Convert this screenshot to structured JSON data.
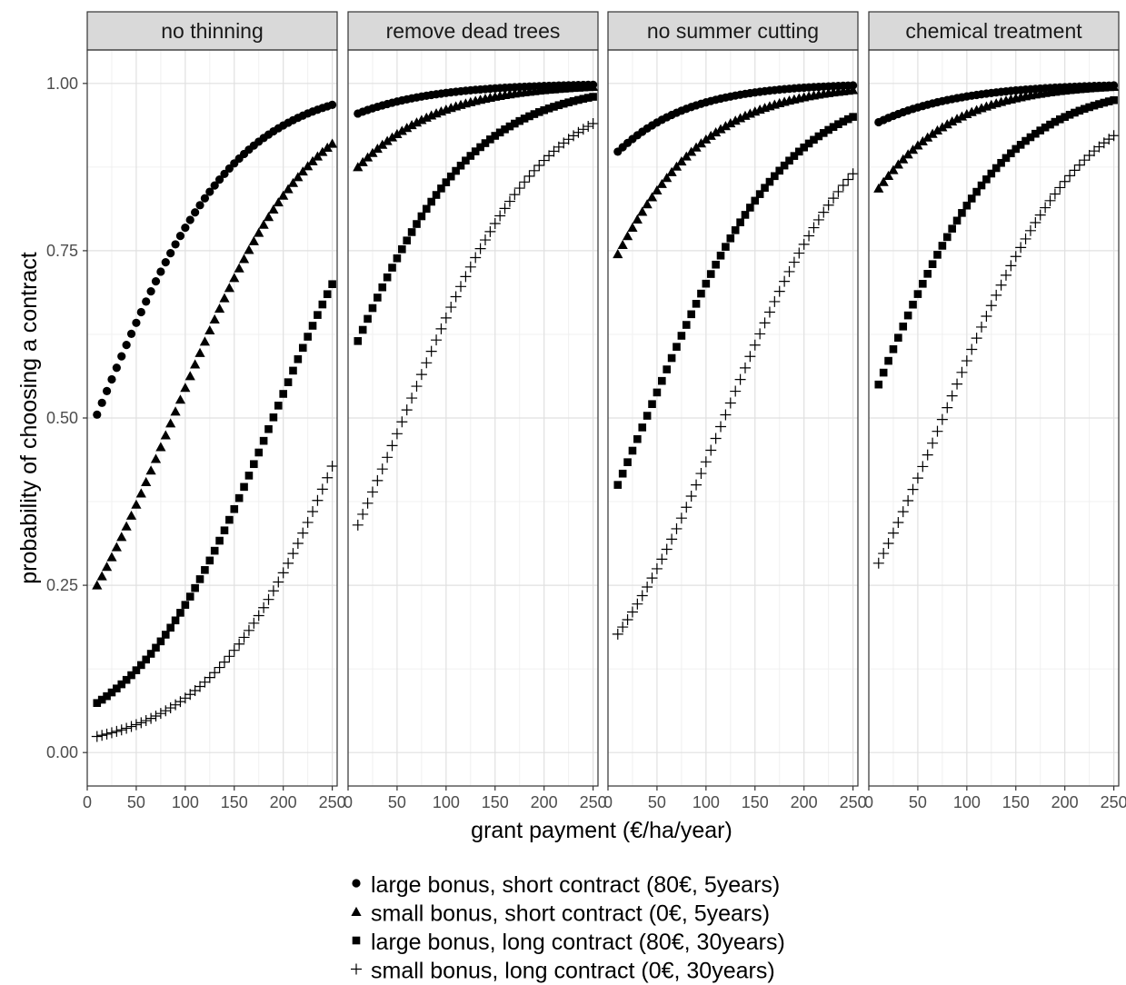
{
  "chart_data": {
    "type": "scatter",
    "xlabel": "grant payment (€/ha/year)",
    "ylabel": "probability of choosing a contract",
    "xlim": [
      0,
      255
    ],
    "ylim": [
      -0.05,
      1.05
    ],
    "xticks": [
      0,
      50,
      100,
      150,
      200,
      250
    ],
    "yticks": [
      0.0,
      0.25,
      0.5,
      0.75,
      1.0
    ],
    "ytick_labels": [
      "0.00",
      "0.25",
      "0.50",
      "0.75",
      "1.00"
    ],
    "grid": true,
    "legend_position": "bottom",
    "x_start": 10,
    "x_end": 250,
    "x_step": 5,
    "panels": [
      {
        "title": "no thinning",
        "series": [
          {
            "name": "large bonus, short contract (80€, 5years)",
            "marker": "circle",
            "start": 0.505,
            "end": 0.968
          },
          {
            "name": "small bonus, short contract (0€, 5years)",
            "marker": "triangle",
            "start": 0.25,
            "end": 0.91
          },
          {
            "name": "large bonus, long contract (80€, 30years)",
            "marker": "square",
            "start": 0.074,
            "end": 0.7
          },
          {
            "name": "small bonus, long contract (0€, 30years)",
            "marker": "plus",
            "start": 0.024,
            "end": 0.428
          }
        ]
      },
      {
        "title": "remove dead trees",
        "series": [
          {
            "name": "large bonus, short contract (80€, 5years)",
            "marker": "circle",
            "start": 0.955,
            "end": 0.998
          },
          {
            "name": "small bonus, short contract (0€, 5years)",
            "marker": "triangle",
            "start": 0.875,
            "end": 0.995
          },
          {
            "name": "large bonus, long contract (80€, 30years)",
            "marker": "square",
            "start": 0.615,
            "end": 0.98
          },
          {
            "name": "small bonus, long contract (0€, 30years)",
            "marker": "plus",
            "start": 0.34,
            "end": 0.94
          }
        ]
      },
      {
        "title": "no summer cutting",
        "series": [
          {
            "name": "large bonus, short contract (80€, 5years)",
            "marker": "circle",
            "start": 0.898,
            "end": 0.997
          },
          {
            "name": "small bonus, short contract (0€, 5years)",
            "marker": "triangle",
            "start": 0.745,
            "end": 0.99
          },
          {
            "name": "large bonus, long contract (80€, 30years)",
            "marker": "square",
            "start": 0.4,
            "end": 0.95
          },
          {
            "name": "small bonus, long contract (0€, 30years)",
            "marker": "plus",
            "start": 0.177,
            "end": 0.865
          }
        ]
      },
      {
        "title": "chemical treatment",
        "series": [
          {
            "name": "large bonus, short contract (80€, 5years)",
            "marker": "circle",
            "start": 0.942,
            "end": 0.997
          },
          {
            "name": "small bonus, short contract (0€, 5years)",
            "marker": "triangle",
            "start": 0.843,
            "end": 0.995
          },
          {
            "name": "large bonus, long contract (80€, 30years)",
            "marker": "square",
            "start": 0.55,
            "end": 0.975
          },
          {
            "name": "small bonus, long contract (0€, 30years)",
            "marker": "plus",
            "start": 0.283,
            "end": 0.922
          }
        ]
      }
    ],
    "legend": [
      {
        "marker": "circle",
        "label": "large bonus, short contract (80€, 5years)"
      },
      {
        "marker": "triangle",
        "label": "small bonus, short contract (0€, 5years)"
      },
      {
        "marker": "square",
        "label": "large bonus, long contract (80€, 30years)"
      },
      {
        "marker": "plus",
        "label": "small bonus, long contract (0€, 30years)"
      }
    ]
  }
}
